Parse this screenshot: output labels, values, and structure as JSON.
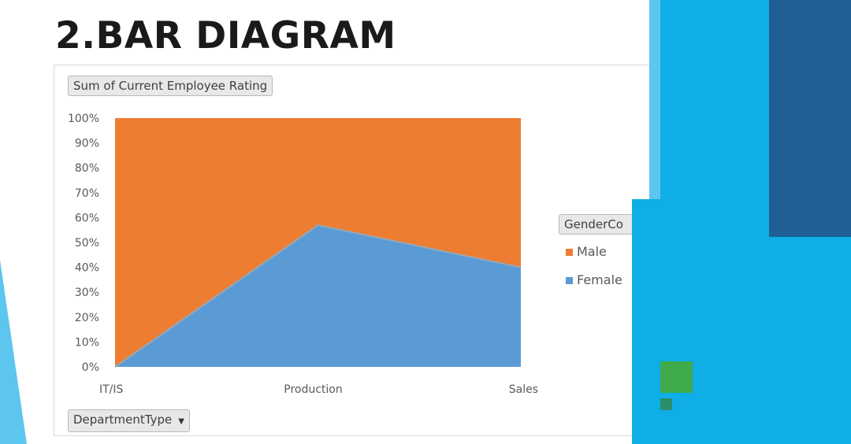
{
  "slide": {
    "title": "2.BAR DIAGRAM"
  },
  "pivot": {
    "value_field": "Sum of Current Employee Rating",
    "legend_field": "GenderCo",
    "axis_field": "DepartmentType"
  },
  "colors": {
    "male": "#ed7d31",
    "female": "#5b9bd5",
    "accent_blue": "#0faee6",
    "dark_blue": "#1f5f95",
    "green": "#3fab4a"
  },
  "chart_data": {
    "type": "area",
    "stacked": "percent",
    "categories": [
      "IT/IS",
      "Production",
      "Sales"
    ],
    "series": [
      {
        "name": "Female",
        "values": [
          0,
          57,
          40
        ]
      },
      {
        "name": "Male",
        "values": [
          100,
          43,
          60
        ]
      }
    ],
    "ylim": [
      0,
      100
    ],
    "yticks": [
      "0%",
      "10%",
      "20%",
      "30%",
      "40%",
      "50%",
      "60%",
      "70%",
      "80%",
      "90%",
      "100%"
    ],
    "legend": {
      "placement": "right",
      "entries": [
        "Male",
        "Female"
      ]
    },
    "grid": false
  }
}
